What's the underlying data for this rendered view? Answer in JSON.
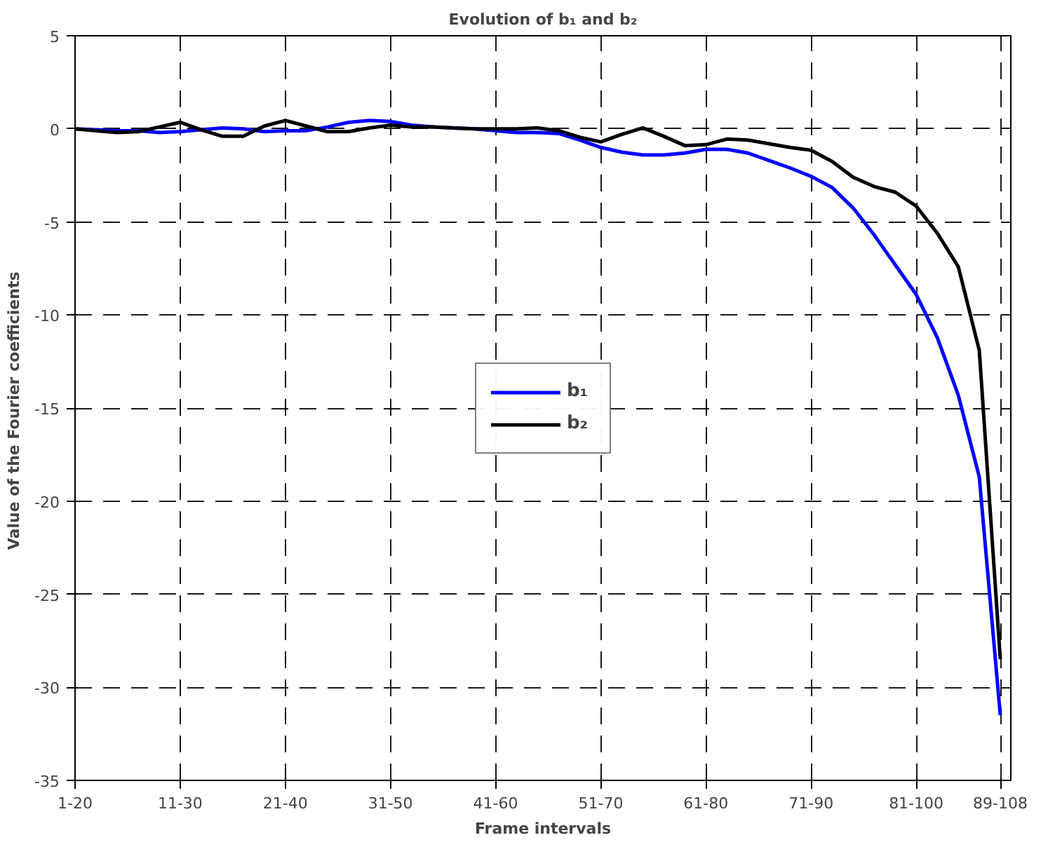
{
  "chart_data": {
    "type": "line",
    "title": "Evolution of b₁ and b₂",
    "xlabel": "Frame intervals",
    "ylabel": "Value of the Fourier  coefficients",
    "categories": [
      "1-20",
      null,
      null,
      null,
      null,
      "11-30",
      null,
      null,
      null,
      null,
      "21-40",
      null,
      null,
      null,
      null,
      "31-50",
      null,
      null,
      null,
      null,
      "41-60",
      null,
      null,
      null,
      null,
      "51-70",
      null,
      null,
      null,
      null,
      "61-80",
      null,
      null,
      null,
      null,
      "71-90",
      null,
      null,
      null,
      null,
      "81-100",
      null,
      null,
      null,
      "89-108"
    ],
    "ylim": [
      -35,
      5
    ],
    "yticks": [
      5,
      0,
      -5,
      -10,
      -15,
      -20,
      -25,
      -30,
      -35
    ],
    "grid": true,
    "legend": "center",
    "line_style": "solid",
    "series": [
      {
        "name": "b₁",
        "color": "#0000ff",
        "values": [
          0,
          -0.05,
          -0.1,
          -0.1,
          -0.2,
          -0.15,
          -0.05,
          0.05,
          0,
          -0.15,
          -0.1,
          -0.1,
          0.1,
          0.35,
          0.45,
          0.4,
          0.2,
          0.1,
          0.05,
          0,
          -0.1,
          -0.2,
          -0.2,
          -0.25,
          -0.6,
          -1.0,
          -1.25,
          -1.4,
          -1.4,
          -1.3,
          -1.1,
          -1.1,
          -1.3,
          -1.7,
          -2.1,
          -2.55,
          -3.15,
          -4.25,
          -5.7,
          -7.3,
          -8.9,
          -11.2,
          -14.3,
          -18.7,
          -31.5
        ]
      },
      {
        "name": "b₂",
        "color": "#000000",
        "values": [
          0,
          -0.1,
          -0.2,
          -0.15,
          0.1,
          0.35,
          -0.05,
          -0.4,
          -0.4,
          0.15,
          0.45,
          0.15,
          -0.15,
          -0.15,
          0.05,
          0.2,
          0.1,
          0.1,
          0.05,
          0,
          0,
          0,
          0.05,
          -0.1,
          -0.45,
          -0.7,
          -0.3,
          0.05,
          -0.4,
          -0.9,
          -0.85,
          -0.55,
          -0.6,
          -0.8,
          -1.0,
          -1.15,
          -1.75,
          -2.6,
          -3.1,
          -3.4,
          -4.15,
          -5.6,
          -7.4,
          -11.9,
          -28.5
        ]
      }
    ]
  }
}
